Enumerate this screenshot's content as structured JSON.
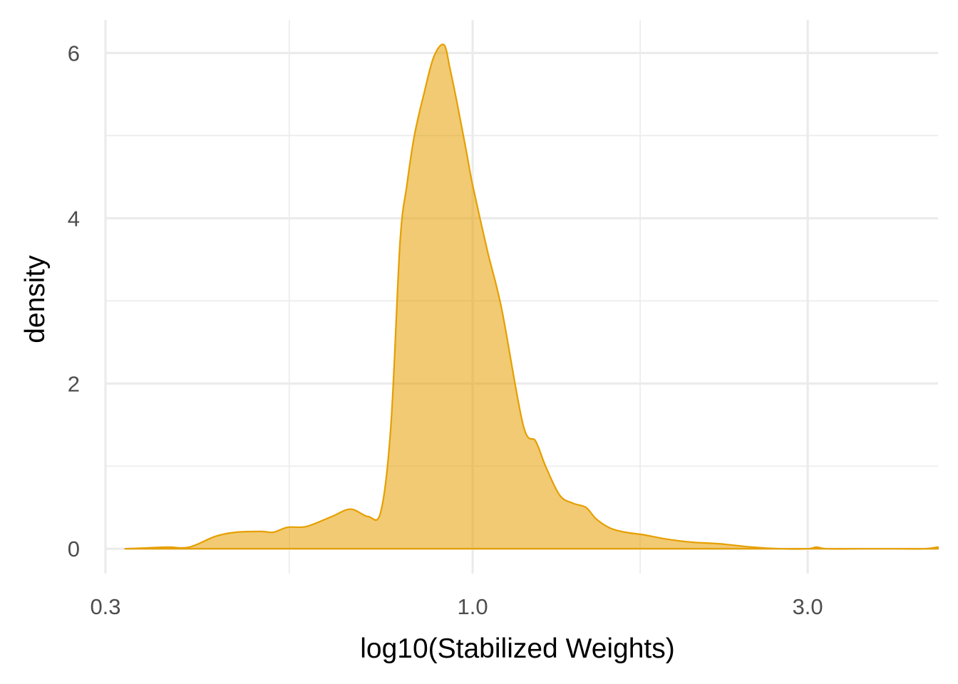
{
  "chart_data": {
    "type": "area",
    "xlabel": "log10(Stabilized Weights)",
    "ylabel": "density",
    "x_scale": "log10",
    "xlim": [
      0.3,
      4.6
    ],
    "ylim": [
      -0.3,
      6.4
    ],
    "x_ticks": [
      {
        "value": 0.3,
        "label": "0.3"
      },
      {
        "value": 1.0,
        "label": "1.0"
      },
      {
        "value": 3.0,
        "label": "3.0"
      }
    ],
    "x_minor_ticks": [
      0.548,
      1.732
    ],
    "y_ticks": [
      {
        "value": 0,
        "label": "0"
      },
      {
        "value": 2,
        "label": "2"
      },
      {
        "value": 4,
        "label": "4"
      },
      {
        "value": 6,
        "label": "6"
      }
    ],
    "y_minor_ticks": [
      1,
      3,
      5
    ],
    "grid": true,
    "legend": "none",
    "fill_color": "#E69F00",
    "fill_opacity": 0.55,
    "line_color": "#E69F00",
    "series": [
      {
        "x": [
          0.32,
          0.343,
          0.368,
          0.395,
          0.43,
          0.46,
          0.5,
          0.52,
          0.545,
          0.58,
          0.63,
          0.67,
          0.71,
          0.74,
          0.765,
          0.788,
          0.806,
          0.826,
          0.852,
          0.88,
          0.91,
          0.929,
          0.95,
          0.98,
          1.0,
          1.05,
          1.1,
          1.18,
          1.23,
          1.27,
          1.33,
          1.39,
          1.45,
          1.5,
          1.57,
          1.65,
          1.75,
          1.88,
          2.05,
          2.25,
          2.5,
          2.75,
          3.0,
          3.09,
          3.2,
          3.6,
          4.0,
          4.4,
          4.6
        ],
        "y": [
          0.0,
          0.01,
          0.02,
          0.02,
          0.15,
          0.2,
          0.21,
          0.2,
          0.26,
          0.27,
          0.39,
          0.48,
          0.39,
          0.45,
          1.5,
          3.7,
          4.4,
          5.0,
          5.5,
          5.95,
          6.1,
          5.8,
          5.4,
          4.8,
          4.4,
          3.6,
          2.9,
          1.5,
          1.3,
          1.0,
          0.65,
          0.55,
          0.5,
          0.36,
          0.25,
          0.2,
          0.17,
          0.12,
          0.08,
          0.06,
          0.02,
          0.0,
          0.0,
          0.02,
          0.0,
          0.0,
          0.0,
          0.0,
          0.02
        ]
      }
    ]
  }
}
